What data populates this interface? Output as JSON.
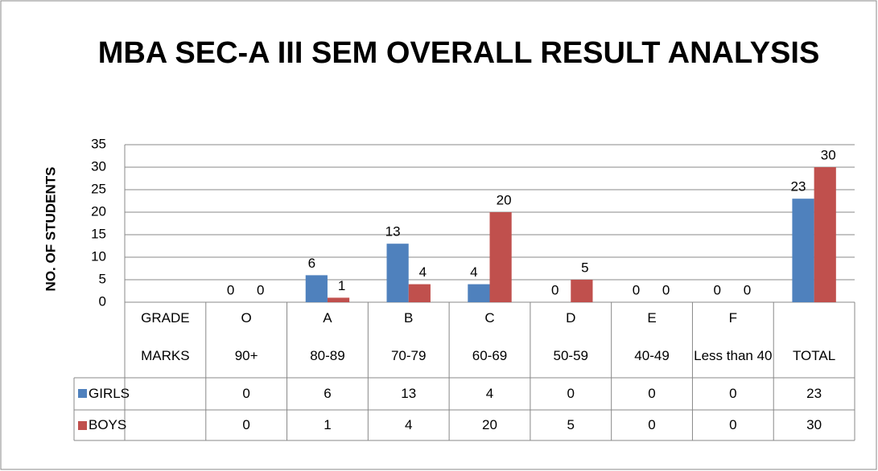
{
  "chart_data": {
    "type": "bar",
    "title": "MBA SEC-A III SEM OVERALL RESULT ANALYSIS",
    "y_label": "NO. OF STUDENTS",
    "categories": [
      "GRADE",
      "O",
      "A",
      "B",
      "C",
      "D",
      "E",
      "F",
      null
    ],
    "marks": [
      "MARKS",
      "90+",
      "80-89",
      "70-79",
      "60-69",
      "50-59",
      "40-49",
      "Less than 40",
      "TOTAL"
    ],
    "series": [
      {
        "name": "GIRLS",
        "color": "#4f81bd",
        "values": [
          null,
          0,
          6,
          13,
          4,
          0,
          0,
          0,
          23
        ]
      },
      {
        "name": "BOYS",
        "color": "#c0504d",
        "values": [
          null,
          0,
          1,
          4,
          20,
          5,
          0,
          0,
          30
        ]
      }
    ],
    "ylim": [
      0,
      35
    ],
    "yticks": [
      0,
      5,
      10,
      15,
      20,
      25,
      30,
      35
    ],
    "grid": true
  }
}
